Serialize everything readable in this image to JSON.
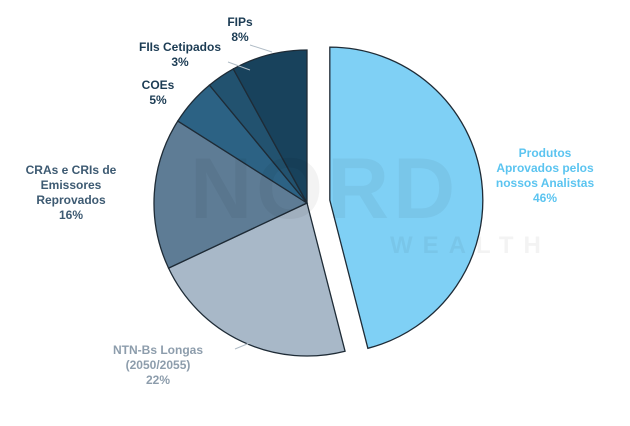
{
  "chart_data": {
    "type": "pie",
    "categories": [
      "Produtos Aprovados pelos nossos Analistas",
      "NTN-Bs Longas (2050/2055)",
      "CRAs e CRIs de Emissores Reprovados",
      "COEs",
      "FIIs Cetipados",
      "FIPs"
    ],
    "values": [
      46,
      22,
      16,
      5,
      3,
      8
    ],
    "value_labels": [
      "46%",
      "22%",
      "16%",
      "5%",
      "3%",
      "8%"
    ],
    "colors": [
      "#7fd0f5",
      "#a8b8c8",
      "#5e7c95",
      "#2c6284",
      "#22526f",
      "#18425c"
    ],
    "exploded": [
      true,
      false,
      false,
      false,
      false,
      false
    ],
    "watermark": [
      "NORD",
      "WEALTH"
    ]
  }
}
